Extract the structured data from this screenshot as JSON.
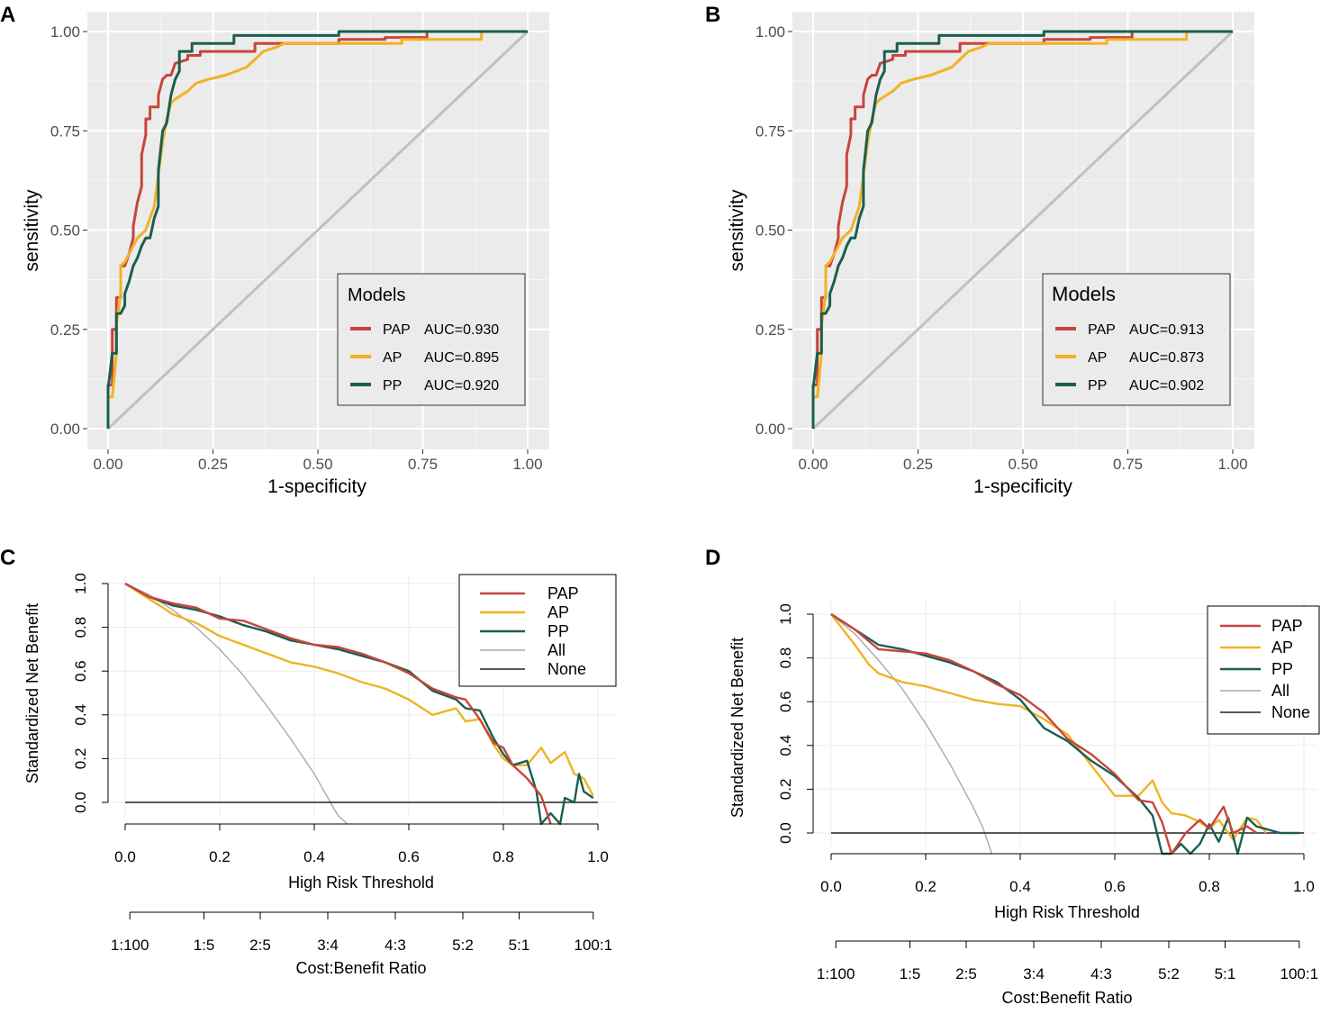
{
  "colors": {
    "PAP": "#c8453b",
    "AP": "#f0b323",
    "PP": "#1a5f4f",
    "All": "#a9a9a9",
    "None": "#222222",
    "diag": "#c0c0c0"
  },
  "chart_data": [
    {
      "panel": "A",
      "type": "line",
      "title": "",
      "xlabel": "1-specificity",
      "ylabel": "sensitivity",
      "xlim": [
        0,
        1
      ],
      "ylim": [
        0,
        1
      ],
      "ticks": [
        "0.00",
        "0.25",
        "0.50",
        "0.75",
        "1.00"
      ],
      "tick_values": [
        0,
        0.25,
        0.5,
        0.75,
        1
      ],
      "legend_title": "Models",
      "legend_position": "bottom-right",
      "series": [
        {
          "name": "PAP",
          "label": "AUC=0.930",
          "x": [
            0,
            0,
            0.01,
            0.01,
            0.02,
            0.02,
            0.03,
            0.03,
            0.04,
            0.05,
            0.06,
            0.06,
            0.07,
            0.08,
            0.08,
            0.09,
            0.09,
            0.1,
            0.1,
            0.12,
            0.12,
            0.13,
            0.14,
            0.15,
            0.16,
            0.16,
            0.19,
            0.19,
            0.22,
            0.22,
            0.35,
            0.35,
            0.55,
            0.55,
            0.66,
            0.66,
            0.76,
            0.76,
            1
          ],
          "y": [
            0,
            0.11,
            0.11,
            0.25,
            0.25,
            0.33,
            0.33,
            0.41,
            0.41,
            0.44,
            0.48,
            0.51,
            0.57,
            0.61,
            0.69,
            0.74,
            0.78,
            0.78,
            0.81,
            0.81,
            0.84,
            0.88,
            0.89,
            0.89,
            0.92,
            0.92,
            0.93,
            0.94,
            0.94,
            0.95,
            0.95,
            0.97,
            0.97,
            0.98,
            0.98,
            0.985,
            0.985,
            1,
            1
          ]
        },
        {
          "name": "AP",
          "label": "AUC=0.895",
          "x": [
            0,
            0,
            0.01,
            0.02,
            0.02,
            0.03,
            0.03,
            0.04,
            0.05,
            0.06,
            0.07,
            0.08,
            0.09,
            0.1,
            0.11,
            0.12,
            0.13,
            0.14,
            0.15,
            0.16,
            0.19,
            0.21,
            0.24,
            0.28,
            0.33,
            0.35,
            0.37,
            0.4,
            0.42,
            0.45,
            0.48,
            0.7,
            0.7,
            0.89,
            0.89,
            1
          ],
          "y": [
            0,
            0.08,
            0.08,
            0.19,
            0.26,
            0.34,
            0.41,
            0.42,
            0.44,
            0.46,
            0.48,
            0.49,
            0.5,
            0.53,
            0.56,
            0.64,
            0.72,
            0.78,
            0.82,
            0.83,
            0.85,
            0.87,
            0.88,
            0.89,
            0.91,
            0.93,
            0.95,
            0.96,
            0.97,
            0.97,
            0.97,
            0.97,
            0.98,
            0.98,
            1,
            1
          ]
        },
        {
          "name": "PP",
          "label": "AUC=0.920",
          "x": [
            0,
            0,
            0.01,
            0.02,
            0.02,
            0.03,
            0.04,
            0.04,
            0.05,
            0.06,
            0.07,
            0.08,
            0.09,
            0.1,
            0.11,
            0.12,
            0.12,
            0.13,
            0.14,
            0.15,
            0.16,
            0.17,
            0.17,
            0.2,
            0.2,
            0.3,
            0.3,
            0.55,
            0.55,
            1
          ],
          "y": [
            0,
            0.1,
            0.19,
            0.19,
            0.29,
            0.29,
            0.31,
            0.34,
            0.37,
            0.41,
            0.43,
            0.46,
            0.48,
            0.48,
            0.53,
            0.56,
            0.65,
            0.75,
            0.77,
            0.84,
            0.88,
            0.9,
            0.95,
            0.95,
            0.97,
            0.97,
            0.99,
            0.99,
            1,
            1
          ]
        }
      ]
    },
    {
      "panel": "B",
      "type": "line",
      "title": "",
      "xlabel": "1-specificity",
      "ylabel": "sensitivity",
      "xlim": [
        0,
        1
      ],
      "ylim": [
        0,
        1
      ],
      "ticks": [
        "0.00",
        "0.25",
        "0.50",
        "0.75",
        "1.00"
      ],
      "tick_values": [
        0,
        0.25,
        0.5,
        0.75,
        1
      ],
      "legend_title": "Models",
      "legend_position": "bottom-right",
      "series": [
        {
          "name": "PAP",
          "label": "AUC=0.913",
          "x": [
            0,
            0,
            0.01,
            0.01,
            0.02,
            0.02,
            0.03,
            0.03,
            0.04,
            0.05,
            0.06,
            0.06,
            0.07,
            0.08,
            0.08,
            0.09,
            0.09,
            0.1,
            0.1,
            0.12,
            0.12,
            0.13,
            0.14,
            0.15,
            0.16,
            0.16,
            0.19,
            0.19,
            0.22,
            0.22,
            0.35,
            0.35,
            0.55,
            0.55,
            0.66,
            0.66,
            0.76,
            0.76,
            1
          ],
          "y": [
            0,
            0.11,
            0.11,
            0.25,
            0.25,
            0.33,
            0.33,
            0.41,
            0.41,
            0.44,
            0.48,
            0.51,
            0.57,
            0.61,
            0.69,
            0.74,
            0.78,
            0.78,
            0.81,
            0.81,
            0.84,
            0.88,
            0.89,
            0.89,
            0.92,
            0.92,
            0.93,
            0.94,
            0.94,
            0.95,
            0.95,
            0.97,
            0.97,
            0.98,
            0.98,
            0.985,
            0.985,
            1,
            1
          ]
        },
        {
          "name": "AP",
          "label": "AUC=0.873",
          "x": [
            0,
            0,
            0.01,
            0.02,
            0.02,
            0.03,
            0.03,
            0.04,
            0.05,
            0.06,
            0.07,
            0.08,
            0.09,
            0.1,
            0.11,
            0.12,
            0.13,
            0.14,
            0.15,
            0.16,
            0.19,
            0.21,
            0.24,
            0.28,
            0.33,
            0.35,
            0.37,
            0.4,
            0.42,
            0.45,
            0.48,
            0.7,
            0.7,
            0.89,
            0.89,
            1
          ],
          "y": [
            0,
            0.08,
            0.08,
            0.19,
            0.26,
            0.34,
            0.41,
            0.42,
            0.44,
            0.46,
            0.48,
            0.49,
            0.5,
            0.53,
            0.56,
            0.64,
            0.72,
            0.78,
            0.82,
            0.83,
            0.85,
            0.87,
            0.88,
            0.89,
            0.91,
            0.93,
            0.95,
            0.96,
            0.97,
            0.97,
            0.97,
            0.97,
            0.98,
            0.98,
            1,
            1
          ]
        },
        {
          "name": "PP",
          "label": "AUC=0.902",
          "x": [
            0,
            0,
            0.01,
            0.02,
            0.02,
            0.03,
            0.04,
            0.04,
            0.05,
            0.06,
            0.07,
            0.08,
            0.09,
            0.1,
            0.11,
            0.12,
            0.12,
            0.13,
            0.14,
            0.15,
            0.16,
            0.17,
            0.17,
            0.2,
            0.2,
            0.3,
            0.3,
            0.55,
            0.55,
            1
          ],
          "y": [
            0,
            0.1,
            0.19,
            0.19,
            0.29,
            0.29,
            0.31,
            0.34,
            0.37,
            0.41,
            0.43,
            0.46,
            0.48,
            0.48,
            0.53,
            0.56,
            0.65,
            0.75,
            0.77,
            0.84,
            0.88,
            0.9,
            0.95,
            0.95,
            0.97,
            0.97,
            0.99,
            0.99,
            1,
            1
          ]
        }
      ]
    },
    {
      "panel": "C",
      "type": "line",
      "title": "",
      "xlabel": "High Risk Threshold",
      "ylabel": "Standardized Net Benefit",
      "xlim": [
        0,
        1
      ],
      "ylim": [
        -0.1,
        1.0
      ],
      "xticks": [
        "0.0",
        "0.2",
        "0.4",
        "0.6",
        "0.8",
        "1.0"
      ],
      "xtick_values": [
        0,
        0.2,
        0.4,
        0.6,
        0.8,
        1.0
      ],
      "yticks": [
        "0.0",
        "0.2",
        "0.4",
        "0.6",
        "0.8",
        "1.0"
      ],
      "ytick_values": [
        0,
        0.2,
        0.4,
        0.6,
        0.8,
        1.0
      ],
      "cost_benefit_label": "Cost:Benefit Ratio",
      "cost_benefit_ticks": [
        "1:100",
        "1:5",
        "2:5",
        "3:4",
        "4:3",
        "5:2",
        "5:1",
        "100:1"
      ],
      "cost_benefit_values": [
        0.0099,
        0.1667,
        0.2857,
        0.4286,
        0.5714,
        0.7143,
        0.8333,
        0.9901
      ],
      "legend_position": "top-right",
      "series": [
        {
          "name": "PAP",
          "x": [
            0,
            0.05,
            0.1,
            0.15,
            0.2,
            0.25,
            0.3,
            0.35,
            0.4,
            0.45,
            0.5,
            0.55,
            0.6,
            0.65,
            0.7,
            0.72,
            0.75,
            0.78,
            0.8,
            0.82,
            0.85,
            0.88,
            0.9
          ],
          "y": [
            1,
            0.94,
            0.91,
            0.89,
            0.84,
            0.83,
            0.79,
            0.75,
            0.72,
            0.71,
            0.68,
            0.64,
            0.59,
            0.52,
            0.48,
            0.47,
            0.38,
            0.27,
            0.25,
            0.17,
            0.11,
            0.03,
            -0.1
          ]
        },
        {
          "name": "AP",
          "x": [
            0,
            0.05,
            0.08,
            0.1,
            0.15,
            0.2,
            0.25,
            0.3,
            0.35,
            0.4,
            0.45,
            0.5,
            0.55,
            0.6,
            0.65,
            0.7,
            0.72,
            0.75,
            0.78,
            0.8,
            0.82,
            0.85,
            0.88,
            0.9,
            0.93,
            0.95,
            0.97,
            0.99
          ],
          "y": [
            1,
            0.93,
            0.89,
            0.86,
            0.82,
            0.76,
            0.72,
            0.68,
            0.64,
            0.62,
            0.59,
            0.55,
            0.52,
            0.47,
            0.4,
            0.43,
            0.37,
            0.38,
            0.26,
            0.2,
            0.17,
            0.17,
            0.25,
            0.18,
            0.23,
            0.13,
            0.11,
            0.03
          ]
        },
        {
          "name": "PP",
          "x": [
            0,
            0.05,
            0.1,
            0.15,
            0.2,
            0.25,
            0.3,
            0.35,
            0.4,
            0.45,
            0.5,
            0.55,
            0.6,
            0.65,
            0.7,
            0.72,
            0.75,
            0.78,
            0.8,
            0.82,
            0.85,
            0.87,
            0.88,
            0.9,
            0.92,
            0.93,
            0.95,
            0.96,
            0.97,
            0.99
          ],
          "y": [
            1,
            0.94,
            0.9,
            0.88,
            0.85,
            0.81,
            0.78,
            0.74,
            0.72,
            0.7,
            0.67,
            0.64,
            0.6,
            0.51,
            0.47,
            0.43,
            0.42,
            0.29,
            0.22,
            0.17,
            0.19,
            0.05,
            -0.1,
            -0.05,
            -0.1,
            0.02,
            0.0,
            0.13,
            0.05,
            0.02
          ]
        },
        {
          "name": "All",
          "x": [
            0,
            0.05,
            0.1,
            0.15,
            0.2,
            0.25,
            0.3,
            0.35,
            0.4,
            0.45,
            0.47
          ],
          "y": [
            1,
            0.95,
            0.88,
            0.8,
            0.7,
            0.58,
            0.44,
            0.29,
            0.13,
            -0.06,
            -0.1
          ]
        },
        {
          "name": "None",
          "x": [
            0,
            1
          ],
          "y": [
            0,
            0
          ]
        }
      ]
    },
    {
      "panel": "D",
      "type": "line",
      "title": "",
      "xlabel": "High Risk Threshold",
      "ylabel": "Standardized Net Benefit",
      "xlim": [
        0,
        1
      ],
      "ylim": [
        -0.1,
        1.0
      ],
      "xticks": [
        "0.0",
        "0.2",
        "0.4",
        "0.6",
        "0.8",
        "1.0"
      ],
      "xtick_values": [
        0,
        0.2,
        0.4,
        0.6,
        0.8,
        1.0
      ],
      "yticks": [
        "0.0",
        "0.2",
        "0.4",
        "0.6",
        "0.8",
        "1.0"
      ],
      "ytick_values": [
        0,
        0.2,
        0.4,
        0.6,
        0.8,
        1.0
      ],
      "cost_benefit_label": "Cost:Benefit Ratio",
      "cost_benefit_ticks": [
        "1:100",
        "1:5",
        "2:5",
        "3:4",
        "4:3",
        "5:2",
        "5:1",
        "100:1"
      ],
      "cost_benefit_values": [
        0.0099,
        0.1667,
        0.2857,
        0.4286,
        0.5714,
        0.7143,
        0.8333,
        0.9901
      ],
      "legend_position": "top-right",
      "series": [
        {
          "name": "PAP",
          "x": [
            0,
            0.05,
            0.1,
            0.15,
            0.2,
            0.25,
            0.3,
            0.35,
            0.4,
            0.45,
            0.5,
            0.55,
            0.6,
            0.65,
            0.68,
            0.7,
            0.72,
            0.75,
            0.78,
            0.8,
            0.83,
            0.85,
            0.88,
            0.9
          ],
          "y": [
            1,
            0.93,
            0.84,
            0.83,
            0.82,
            0.79,
            0.74,
            0.68,
            0.63,
            0.55,
            0.43,
            0.36,
            0.27,
            0.15,
            0.14,
            0.05,
            -0.1,
            0.0,
            0.06,
            0.02,
            0.12,
            0.0,
            0.03,
            0.0
          ]
        },
        {
          "name": "AP",
          "x": [
            0,
            0.05,
            0.08,
            0.1,
            0.15,
            0.2,
            0.25,
            0.3,
            0.35,
            0.4,
            0.45,
            0.5,
            0.55,
            0.6,
            0.65,
            0.68,
            0.7,
            0.72,
            0.75,
            0.78,
            0.8,
            0.82,
            0.85,
            0.88,
            0.9,
            0.92
          ],
          "y": [
            1,
            0.86,
            0.77,
            0.73,
            0.69,
            0.67,
            0.64,
            0.61,
            0.59,
            0.58,
            0.52,
            0.45,
            0.31,
            0.17,
            0.17,
            0.24,
            0.14,
            0.09,
            0.08,
            0.05,
            0.02,
            0.06,
            -0.03,
            0.07,
            0.06,
            0.0
          ]
        },
        {
          "name": "PP",
          "x": [
            0,
            0.05,
            0.1,
            0.15,
            0.2,
            0.25,
            0.3,
            0.35,
            0.4,
            0.45,
            0.5,
            0.55,
            0.6,
            0.65,
            0.68,
            0.7,
            0.72,
            0.74,
            0.76,
            0.78,
            0.8,
            0.82,
            0.84,
            0.86,
            0.88,
            0.9,
            0.95,
            0.99
          ],
          "y": [
            1,
            0.93,
            0.86,
            0.84,
            0.81,
            0.78,
            0.74,
            0.69,
            0.61,
            0.48,
            0.42,
            0.33,
            0.26,
            0.16,
            0.08,
            -0.1,
            -0.1,
            -0.05,
            -0.1,
            -0.05,
            0.04,
            -0.04,
            0.07,
            -0.1,
            0.07,
            0.03,
            0.0,
            0.0
          ]
        },
        {
          "name": "All",
          "x": [
            0,
            0.05,
            0.1,
            0.15,
            0.2,
            0.25,
            0.3,
            0.32,
            0.34
          ],
          "y": [
            1,
            0.91,
            0.79,
            0.66,
            0.5,
            0.32,
            0.12,
            0.03,
            -0.1
          ]
        },
        {
          "name": "None",
          "x": [
            0,
            1
          ],
          "y": [
            0,
            0
          ]
        }
      ]
    }
  ]
}
